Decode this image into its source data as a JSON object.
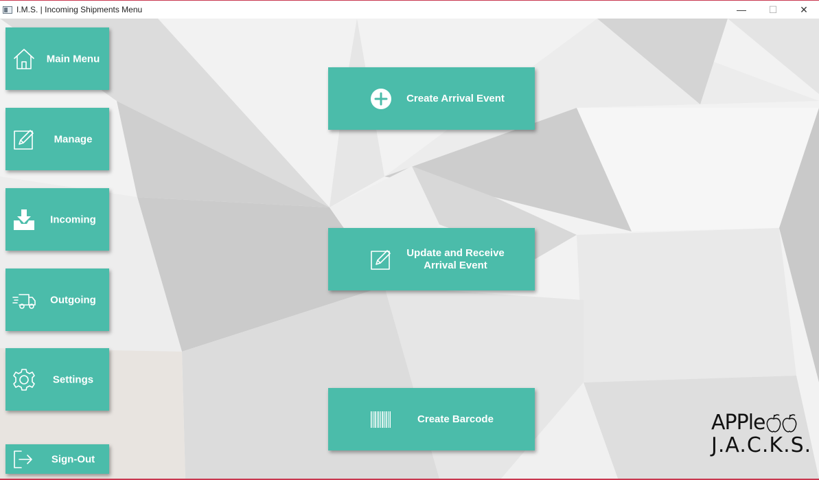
{
  "window": {
    "title": "I.M.S. | Incoming Shipments Menu",
    "minimize": "—",
    "maximize": "☐",
    "close": "✕"
  },
  "sidebar": {
    "items": [
      {
        "label": "Main Menu",
        "icon": "home-icon"
      },
      {
        "label": "Manage",
        "icon": "edit-icon"
      },
      {
        "label": "Incoming",
        "icon": "inbox-download-icon"
      },
      {
        "label": "Outgoing",
        "icon": "truck-icon"
      },
      {
        "label": "Settings",
        "icon": "gear-icon"
      }
    ],
    "signout_label": "Sign-Out"
  },
  "actions": {
    "create_arrival": "Create Arrival Event",
    "update_receive_line1": "Update and Receive",
    "update_receive_line2": "Arrival Event",
    "create_barcode": "Create Barcode"
  },
  "logo": {
    "top": "APPle",
    "bottom": "J.A.C.K.S."
  },
  "colors": {
    "accent": "#4bbcaa",
    "title_border": "#c8374f"
  }
}
